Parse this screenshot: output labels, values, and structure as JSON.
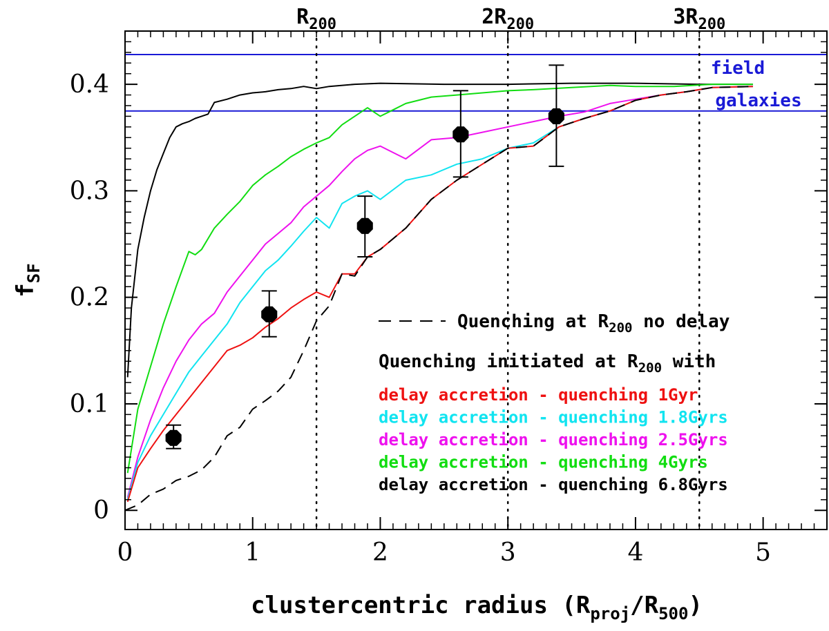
{
  "chart_data": {
    "type": "line",
    "xlabel": "clustercentric radius (R",
    "xlabel_sub1": "proj",
    "xlabel_mid": "/R",
    "xlabel_sub2": "500",
    "xlabel_end": ")",
    "ylabel": "f",
    "ylabel_sub": "SF",
    "xlim": [
      0,
      5.5
    ],
    "ylim": [
      -0.018,
      0.45
    ],
    "x_ticks": [
      0,
      1,
      2,
      3,
      4,
      5
    ],
    "x_tick_labels": [
      "0",
      "1",
      "2",
      "3",
      "4",
      "5"
    ],
    "y_ticks": [
      0,
      0.1,
      0.2,
      0.3,
      0.4
    ],
    "y_tick_labels": [
      "0",
      "0.1",
      "0.2",
      "0.3",
      "0.4"
    ],
    "vertical_markers": [
      {
        "x": 1.5,
        "label": "R",
        "sub": "200"
      },
      {
        "x": 3.0,
        "label": "2R",
        "sub": "200"
      },
      {
        "x": 4.5,
        "label": "3R",
        "sub": "200"
      }
    ],
    "field_band": {
      "y_low": 0.375,
      "y_high": 0.428,
      "color": "#1a1ad6",
      "label_line1": "field",
      "label_line2": "galaxies"
    },
    "series": [
      {
        "name": "delay accretion - quenching 6.8Gyrs",
        "color": "#000000",
        "dashed": false,
        "x": [
          0.02,
          0.05,
          0.1,
          0.15,
          0.2,
          0.25,
          0.3,
          0.35,
          0.4,
          0.45,
          0.5,
          0.55,
          0.6,
          0.65,
          0.7,
          0.8,
          0.9,
          1.0,
          1.1,
          1.2,
          1.3,
          1.4,
          1.5,
          1.6,
          1.8,
          2.0,
          2.5,
          3.0,
          3.5,
          4.0,
          4.5,
          4.92
        ],
        "y": [
          0.125,
          0.19,
          0.245,
          0.275,
          0.3,
          0.32,
          0.335,
          0.35,
          0.36,
          0.363,
          0.365,
          0.368,
          0.37,
          0.372,
          0.383,
          0.386,
          0.39,
          0.392,
          0.393,
          0.395,
          0.396,
          0.398,
          0.396,
          0.398,
          0.4,
          0.401,
          0.4,
          0.4,
          0.401,
          0.401,
          0.4,
          0.4
        ]
      },
      {
        "name": "delay accretion - quenching 4Gyrs",
        "color": "#11dd11",
        "dashed": false,
        "x": [
          0.02,
          0.1,
          0.2,
          0.3,
          0.4,
          0.5,
          0.55,
          0.6,
          0.7,
          0.8,
          0.9,
          1.0,
          1.1,
          1.2,
          1.3,
          1.4,
          1.5,
          1.6,
          1.7,
          1.8,
          1.9,
          2.0,
          2.1,
          2.2,
          2.4,
          2.6,
          2.8,
          3.0,
          3.2,
          3.5,
          3.8,
          4.0,
          4.3,
          4.6,
          4.92
        ],
        "y": [
          0.035,
          0.095,
          0.135,
          0.175,
          0.21,
          0.243,
          0.24,
          0.245,
          0.265,
          0.278,
          0.29,
          0.305,
          0.315,
          0.323,
          0.332,
          0.339,
          0.345,
          0.35,
          0.362,
          0.37,
          0.378,
          0.37,
          0.376,
          0.382,
          0.388,
          0.39,
          0.392,
          0.394,
          0.395,
          0.397,
          0.399,
          0.398,
          0.398,
          0.4,
          0.4
        ]
      },
      {
        "name": "delay accretion - quenching 2.5Gyrs",
        "color": "#ee11ee",
        "dashed": false,
        "x": [
          0.02,
          0.1,
          0.2,
          0.3,
          0.4,
          0.5,
          0.6,
          0.7,
          0.8,
          0.9,
          1.0,
          1.1,
          1.2,
          1.3,
          1.4,
          1.5,
          1.6,
          1.7,
          1.8,
          1.9,
          2.0,
          2.1,
          2.2,
          2.4,
          2.6,
          2.8,
          3.0,
          3.2,
          3.4,
          3.6,
          3.8,
          4.0,
          4.2,
          4.4,
          4.6,
          4.92
        ],
        "y": [
          0.012,
          0.05,
          0.085,
          0.115,
          0.14,
          0.16,
          0.175,
          0.185,
          0.205,
          0.22,
          0.235,
          0.25,
          0.26,
          0.27,
          0.285,
          0.295,
          0.305,
          0.318,
          0.33,
          0.338,
          0.342,
          0.336,
          0.33,
          0.348,
          0.35,
          0.355,
          0.36,
          0.365,
          0.37,
          0.374,
          0.382,
          0.386,
          0.39,
          0.393,
          0.397,
          0.398
        ]
      },
      {
        "name": "delay accretion - quenching 1.8Gyrs",
        "color": "#11e4f0",
        "dashed": false,
        "x": [
          0.02,
          0.1,
          0.2,
          0.3,
          0.4,
          0.5,
          0.6,
          0.7,
          0.8,
          0.9,
          1.0,
          1.1,
          1.2,
          1.3,
          1.4,
          1.5,
          1.6,
          1.7,
          1.8,
          1.9,
          2.0,
          2.2,
          2.4,
          2.6,
          2.8,
          3.0,
          3.2,
          3.4,
          3.6,
          3.8,
          4.0,
          4.2,
          4.4,
          4.6,
          4.92
        ],
        "y": [
          0.01,
          0.045,
          0.07,
          0.09,
          0.11,
          0.13,
          0.145,
          0.16,
          0.175,
          0.195,
          0.21,
          0.225,
          0.235,
          0.248,
          0.262,
          0.275,
          0.265,
          0.288,
          0.295,
          0.3,
          0.292,
          0.31,
          0.315,
          0.325,
          0.33,
          0.34,
          0.345,
          0.36,
          0.368,
          0.375,
          0.385,
          0.39,
          0.393,
          0.397,
          0.398
        ]
      },
      {
        "name": "delay accretion - quenching 1Gyr",
        "color": "#ee1111",
        "dashed": false,
        "x": [
          0.02,
          0.1,
          0.2,
          0.3,
          0.4,
          0.5,
          0.6,
          0.7,
          0.8,
          0.9,
          1.0,
          1.1,
          1.2,
          1.3,
          1.4,
          1.5,
          1.6,
          1.7,
          1.8,
          1.9,
          2.0,
          2.2,
          2.4,
          2.6,
          2.8,
          3.0,
          3.2,
          3.4,
          3.6,
          3.8,
          4.0,
          4.2,
          4.4,
          4.6,
          4.92
        ],
        "y": [
          0.008,
          0.04,
          0.058,
          0.075,
          0.09,
          0.105,
          0.12,
          0.135,
          0.15,
          0.155,
          0.162,
          0.172,
          0.18,
          0.19,
          0.198,
          0.205,
          0.2,
          0.222,
          0.222,
          0.238,
          0.245,
          0.265,
          0.292,
          0.31,
          0.325,
          0.34,
          0.342,
          0.36,
          0.368,
          0.375,
          0.385,
          0.39,
          0.393,
          0.397,
          0.398
        ]
      },
      {
        "name": "Quenching at R200 no delay",
        "color": "#000000",
        "dashed": true,
        "x": [
          0.0,
          0.1,
          0.2,
          0.3,
          0.4,
          0.5,
          0.6,
          0.7,
          0.8,
          0.9,
          1.0,
          1.1,
          1.2,
          1.3,
          1.4,
          1.5,
          1.6,
          1.7,
          1.8,
          1.9,
          2.0,
          2.2,
          2.4,
          2.6,
          2.8,
          3.0,
          3.2,
          3.4,
          3.6,
          3.8,
          4.0,
          4.2,
          4.4,
          4.6,
          4.92
        ],
        "y": [
          0.0,
          0.005,
          0.015,
          0.02,
          0.028,
          0.032,
          0.038,
          0.05,
          0.07,
          0.078,
          0.095,
          0.103,
          0.112,
          0.125,
          0.15,
          0.178,
          0.192,
          0.222,
          0.22,
          0.238,
          0.245,
          0.265,
          0.292,
          0.31,
          0.325,
          0.34,
          0.342,
          0.36,
          0.368,
          0.375,
          0.385,
          0.39,
          0.393,
          0.397,
          0.398
        ]
      }
    ],
    "observed_points": {
      "x": [
        0.38,
        1.13,
        1.88,
        2.63,
        3.38
      ],
      "y": [
        0.068,
        0.184,
        0.267,
        0.353,
        0.37
      ],
      "err_low": [
        0.058,
        0.163,
        0.238,
        0.313,
        0.323
      ],
      "err_high": [
        0.08,
        0.206,
        0.295,
        0.394,
        0.418
      ]
    },
    "legend": {
      "placement": "bottom-right",
      "dashed_label": "Quenching at R",
      "dashed_label_sub": "200",
      "dashed_label_end": " no delay",
      "header": "Quenching initiated at R",
      "header_sub": "200",
      "header_end": " with",
      "entries": [
        {
          "label": "delay accretion - quenching 1Gyr",
          "color": "#ee1111"
        },
        {
          "label": "delay accretion - quenching 1.8Gyrs",
          "color": "#11e4f0"
        },
        {
          "label": "delay accretion - quenching 2.5Gyrs",
          "color": "#ee11ee"
        },
        {
          "label": "delay accretion - quenching 4Gyrs",
          "color": "#11dd11"
        },
        {
          "label": "delay accretion - quenching 6.8Gyrs",
          "color": "#000000"
        }
      ]
    }
  }
}
